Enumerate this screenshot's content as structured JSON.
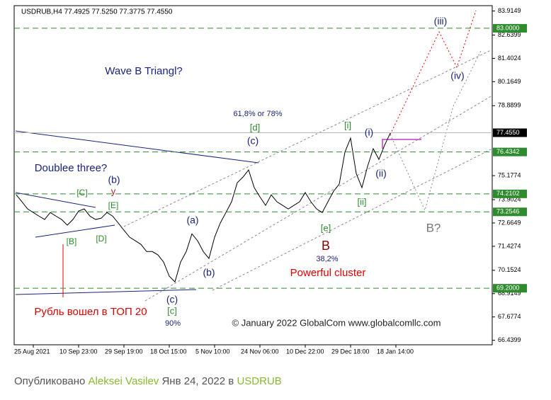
{
  "chart_data": {
    "type": "line",
    "title": "USDRUB,H4  77.4925 77.5250 77.3775 77.4550",
    "categories": [
      null,
      null,
      null,
      "25 Aug 2021",
      null,
      null,
      null,
      null,
      null,
      null,
      null,
      "10 Sep 23:00",
      null,
      null,
      null,
      null,
      null,
      null,
      null,
      "29 Sep 19:00",
      null,
      null,
      null,
      null,
      null,
      null,
      null,
      "18 Oct 15:00",
      null,
      null,
      null,
      null,
      null,
      null,
      null,
      "5 Nov 10:00",
      null,
      null,
      null,
      null,
      null,
      null,
      null,
      "24 Nov 06:00",
      null,
      null,
      null,
      null,
      null,
      null,
      null,
      "10 Dec 22:00",
      null,
      null,
      null,
      null,
      null,
      null,
      null,
      "29 Dec 18:00",
      null,
      null,
      null,
      null,
      null,
      null,
      null,
      "18 Jan 14:00"
    ],
    "series": [
      {
        "name": "USDRUB",
        "color": "#000000",
        "values": [
          74.16,
          73.79,
          73.41,
          73.22,
          73.03,
          72.85,
          73.22,
          73.03,
          72.85,
          72.55,
          72.85,
          73.3,
          73.41,
          73.03,
          72.85,
          72.92,
          73.22,
          73.03,
          72.66,
          72.28,
          71.91,
          71.72,
          71.53,
          71.15,
          71.15,
          70.97,
          70.59,
          69.84,
          69.54,
          70.59,
          71.15,
          72.09,
          71.72,
          71.15,
          70.78,
          71.91,
          72.66,
          73.22,
          73.79,
          74.8,
          75.1,
          75.48,
          74.54,
          74.05,
          73.6,
          74.16,
          73.79,
          73.6,
          73.41,
          73.6,
          73.79,
          74.28,
          73.79,
          73.41,
          73.22,
          73.79,
          74.35,
          74.73,
          76.42,
          77.17,
          75.29,
          74.54,
          75.67,
          76.61,
          76.04,
          76.79,
          77.43,
          null
        ]
      }
    ],
    "ylim": [
      66.2,
      84.2
    ],
    "yticks": [
      83.9149,
      82.6399,
      81.4024,
      80.1649,
      78.8899,
      75.1774,
      73.9024,
      72.6649,
      71.4274,
      70.1524,
      68.9149,
      67.6774,
      66.4399
    ],
    "levels": [
      {
        "value": 83,
        "label": "83.0000"
      },
      76.4342,
      74.2102,
      73.2546,
      {
        "value": 69.2,
        "label": "69.2000"
      }
    ],
    "level_color": "#2e8b2e",
    "current": {
      "value": 77.455,
      "label": "77.4550"
    },
    "annotations": [
      "Wave B Triangl?",
      "Doublee three?",
      "(b)",
      "y",
      "[C]",
      "[E]",
      "[B]",
      "[D]",
      "(a)",
      "(b)",
      "(c)",
      "[c]",
      "90%",
      "61,8% or 78%",
      "[d]",
      "(c)",
      "[i]",
      "(i)",
      "(ii)",
      "[ii]",
      "[e]",
      "B",
      "38,2%",
      "Powerful cluster",
      "(iii)",
      "(iv)",
      "B?",
      "Рубль вошел в ТОП 20",
      "© January 2022 GlobalCom www.globalcomllc.com"
    ]
  },
  "footer": {
    "prefix": "Опубликовано",
    "author": "Aleksei Vasilev",
    "date": "Янв 24, 2022",
    "preposition": "в",
    "symbol": "USDRUB"
  }
}
